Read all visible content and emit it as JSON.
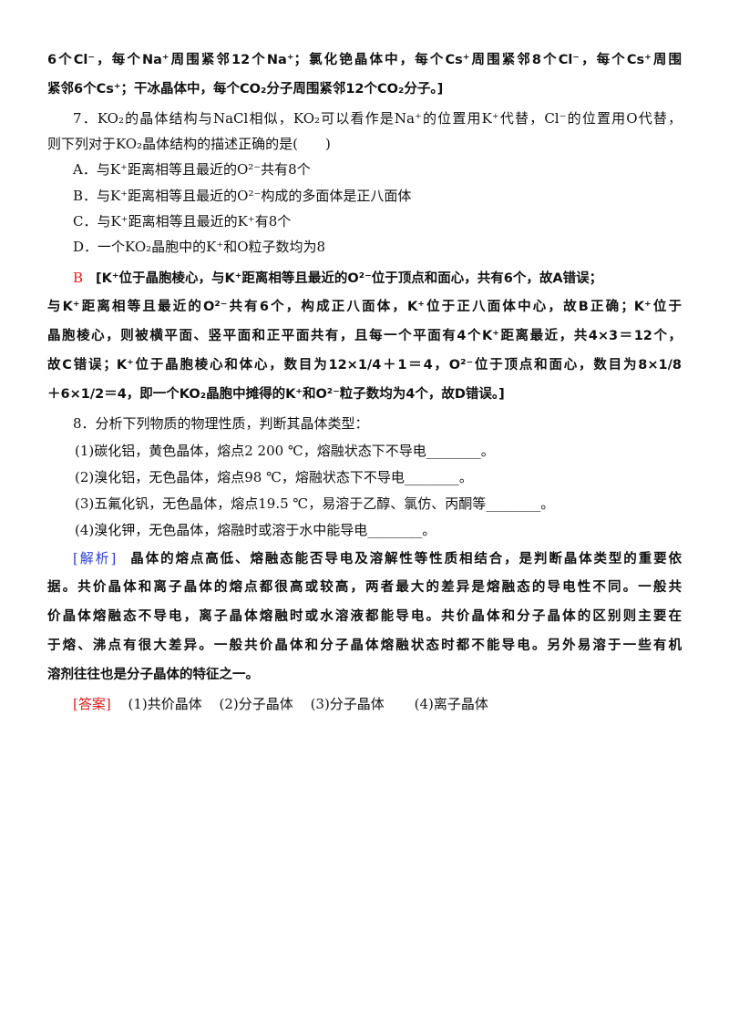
{
  "prev_answer": {
    "lines": [
      "6个Cl⁻，每个Na⁺周围紧邻12个Na⁺；氯化铯晶体中，每个Cs⁺周围紧邻8个Cl⁻，每个Cs⁺周围",
      "紧邻6个Cs⁺；干冰晶体中，每个CO₂分子周围紧邻12个CO₂分子。]"
    ]
  },
  "q7": {
    "stem": [
      "7．KO₂的晶体结构与NaCl相似，KO₂可以看作是Na⁺的位置用K⁺代替，Cl⁻的位置用O代替，",
      "则下列对于KO₂晶体结构的描述正确的是(　　)"
    ],
    "options": [
      "A．与K⁺距离相等且最近的O²⁻共有8个",
      "B．与K⁺距离相等且最近的O²⁻构成的多面体是正八面体",
      "C．与K⁺距离相等且最近的K⁺有8个",
      "D．一个KO₂晶胞中的K⁺和O粒子数均为8"
    ],
    "answer_letter": "B",
    "explanation": [
      "[K⁺位于晶胞棱心，与K⁺距离相等且最近的O²⁻位于顶点和面心，共有6个，故A错误；",
      "与K⁺距离相等且最近的O²⁻共有6个，构成正八面体，K⁺位于正八面体中心，故B正确；K⁺位于",
      "晶胞棱心，则被横平面、竖平面和正平面共有，且每一个平面有4个K⁺距离最近，共4×3＝12个，",
      "故C错误；K⁺位于晶胞棱心和体心，数目为12×1/4＋1＝4，O²⁻位于顶点和面心，数目为8×1/8",
      "＋6×1/2＝4，即一个KO₂晶胞中摊得的K⁺和O²⁻粒子数均为4个，故D错误。]"
    ]
  },
  "q8": {
    "stem": "8．分析下列物质的物理性质，判断其晶体类型：",
    "items": [
      "(1)碳化铝，黄色晶体，熔点2 200 ℃，熔融状态下不导电________。",
      "(2)溴化铝，无色晶体，熔点98 ℃，熔融状态下不导电________。",
      "(3)五氟化钒，无色晶体，熔点19.5 ℃，易溶于乙醇、氯仿、丙酮等________。",
      " (4)溴化钾，无色晶体，熔融时或溶于水中能导电________。"
    ],
    "analysis_label": "[解析]",
    "analysis": [
      "晶体的熔点高低、熔融态能否导电及溶解性等性质相结合，是判断晶体类型的重要依",
      "据。共价晶体和离子晶体的熔点都很高或较高，两者最大的差异是熔融态的导电性不同。一般共",
      "价晶体熔融态不导电，离子晶体熔融时或水溶液都能导电。共价晶体和分子晶体的区别则主要在",
      "于熔、沸点有很大差异。一般共价晶体和分子晶体熔融状态时都不能导电。另外易溶于一些有机",
      "溶剂往往也是分子晶体的特征之一。"
    ],
    "answer_label": "[答案]",
    "answers": [
      "(1)共价晶体",
      "(2)分子晶体",
      "(3)分子晶体",
      "(4)离子晶体"
    ]
  },
  "colors": {
    "answer_red": "#e0201c",
    "analysis_blue": "#2a3fd0"
  }
}
